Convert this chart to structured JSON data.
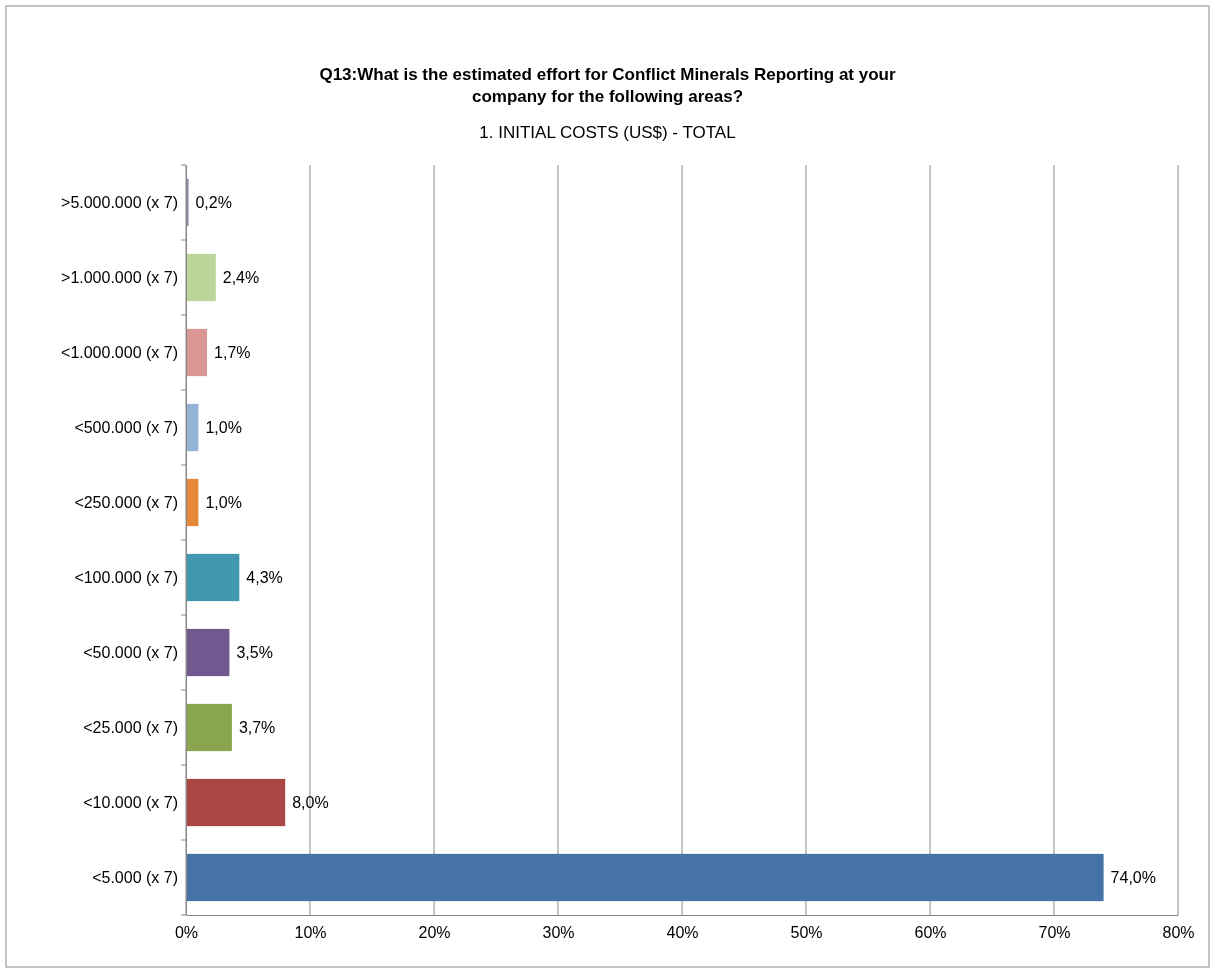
{
  "chart_data": {
    "type": "bar",
    "orientation": "horizontal",
    "title": "Q13:What is the estimated effort for Conflict Minerals Reporting at your company for the following areas?",
    "subtitle": "1. INITIAL COSTS (US$) - TOTAL",
    "categories": [
      ">5.000.000 (x 7)",
      ">1.000.000 (x 7)",
      "<1.000.000 (x 7)",
      "<500.000 (x 7)",
      "<250.000 (x 7)",
      "<100.000 (x 7)",
      "<50.000 (x 7)",
      "<25.000 (x 7)",
      "<10.000 (x 7)",
      "<5.000 (x 7)"
    ],
    "values": [
      0.2,
      2.4,
      1.7,
      1.0,
      1.0,
      4.3,
      3.5,
      3.7,
      8.0,
      74.0
    ],
    "value_labels": [
      "0,2%",
      "2,4%",
      "1,7%",
      "1,0%",
      "1,0%",
      "4,3%",
      "3,5%",
      "3,7%",
      "8,0%",
      "74,0%"
    ],
    "colors": [
      "#8c7fa8",
      "#bcd39a",
      "#d99694",
      "#95b3d7",
      "#e6883a",
      "#4198af",
      "#71588f",
      "#89a54e",
      "#aa4643",
      "#4572a7"
    ],
    "xlim": [
      0,
      80
    ],
    "xticks": [
      {
        "value": 0,
        "label": "0%"
      },
      {
        "value": 10,
        "label": "10%"
      },
      {
        "value": 20,
        "label": "20%"
      },
      {
        "value": 30,
        "label": "30%"
      },
      {
        "value": 40,
        "label": "40%"
      },
      {
        "value": 50,
        "label": "50%"
      },
      {
        "value": 60,
        "label": "60%"
      },
      {
        "value": 70,
        "label": "70%"
      },
      {
        "value": 80,
        "label": "80%"
      }
    ],
    "grid": "x"
  }
}
